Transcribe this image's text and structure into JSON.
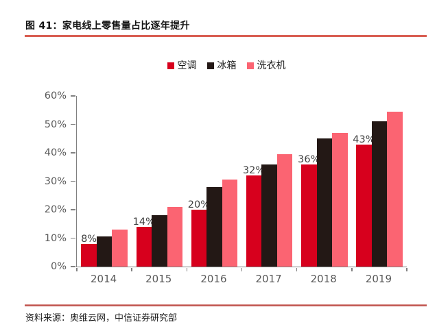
{
  "header": {
    "title": "图 41：家电线上零售量占比逐年提升"
  },
  "footer": {
    "source": "资料来源：奥维云网，中信证券研究部"
  },
  "colors": {
    "title_rule": "#d95f53",
    "footer_rule": "#af2b25",
    "axis_line": "#808080",
    "axis_text": "#595959",
    "data_label_text": "#404040"
  },
  "chart_data": {
    "type": "bar",
    "title": "家电线上零售量占比逐年提升",
    "categories": [
      "2014",
      "2015",
      "2016",
      "2017",
      "2018",
      "2019"
    ],
    "series": [
      {
        "key": "air-conditioner",
        "name": "空调",
        "color": "#d7001d",
        "values": [
          8,
          14,
          20,
          32,
          36,
          43
        ],
        "labels": [
          "8%",
          "14%",
          "20%",
          "32%",
          "36%",
          "43%"
        ]
      },
      {
        "key": "refrigerator",
        "name": "冰箱",
        "color": "#231815",
        "values": [
          10.5,
          18,
          28,
          36,
          45,
          51
        ]
      },
      {
        "key": "washing-machine",
        "name": "洗衣机",
        "color": "#fb6472",
        "values": [
          13,
          21,
          30.5,
          39.5,
          47,
          54.5
        ]
      }
    ],
    "xlabel": "",
    "ylabel": "",
    "ylim": [
      0,
      60
    ],
    "ytick_step": 10,
    "ytick_labels": [
      "0%",
      "10%",
      "20%",
      "30%",
      "40%",
      "50%",
      "60%"
    ],
    "grid": false,
    "legend_position": "top-center"
  }
}
